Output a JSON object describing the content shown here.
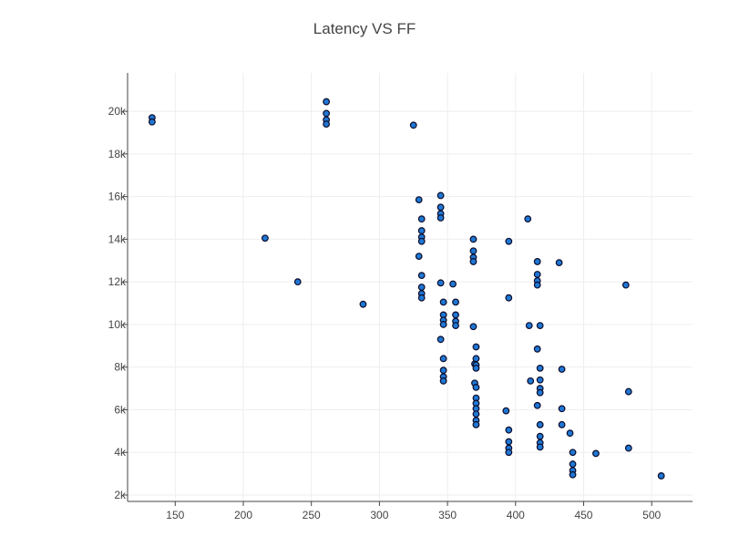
{
  "chart_data": {
    "type": "scatter",
    "title": "Latency VS FF",
    "xlabel": "",
    "ylabel": "",
    "xlim": [
      115,
      530
    ],
    "ylim": [
      1700,
      21800
    ],
    "grid": true,
    "x_ticks": [
      150,
      200,
      250,
      300,
      350,
      400,
      450,
      500
    ],
    "x_tick_labels": [
      "150",
      "200",
      "250",
      "300",
      "350",
      "400",
      "450",
      "500"
    ],
    "y_ticks": [
      2000,
      4000,
      6000,
      8000,
      10000,
      12000,
      14000,
      16000,
      18000,
      20000
    ],
    "y_tick_labels": [
      "2k",
      "4k",
      "6k",
      "8k",
      "10k",
      "12k",
      "14k",
      "16k",
      "18k",
      "20k"
    ],
    "marker_fill": "#1f77d4",
    "marker_stroke": "#0b0b2a",
    "series": [
      {
        "points": [
          [
            133,
            19700
          ],
          [
            133,
            19500
          ],
          [
            216,
            14050
          ],
          [
            240,
            12000
          ],
          [
            261,
            20450
          ],
          [
            261,
            19900
          ],
          [
            261,
            19600
          ],
          [
            261,
            19400
          ],
          [
            288,
            10950
          ],
          [
            325,
            19350
          ],
          [
            329,
            15850
          ],
          [
            329,
            13200
          ],
          [
            331,
            14950
          ],
          [
            331,
            14400
          ],
          [
            331,
            14100
          ],
          [
            331,
            13900
          ],
          [
            331,
            12300
          ],
          [
            331,
            11750
          ],
          [
            331,
            11450
          ],
          [
            331,
            11250
          ],
          [
            345,
            16050
          ],
          [
            345,
            15500
          ],
          [
            345,
            15200
          ],
          [
            345,
            15000
          ],
          [
            345,
            11950
          ],
          [
            345,
            9300
          ],
          [
            347,
            11050
          ],
          [
            347,
            10450
          ],
          [
            347,
            10200
          ],
          [
            347,
            10000
          ],
          [
            347,
            8400
          ],
          [
            347,
            7850
          ],
          [
            347,
            7550
          ],
          [
            347,
            7350
          ],
          [
            354,
            11900
          ],
          [
            356,
            11050
          ],
          [
            356,
            10450
          ],
          [
            356,
            10150
          ],
          [
            356,
            9950
          ],
          [
            369,
            14000
          ],
          [
            369,
            13450
          ],
          [
            369,
            13150
          ],
          [
            369,
            12950
          ],
          [
            369,
            9900
          ],
          [
            370,
            8150
          ],
          [
            370,
            7250
          ],
          [
            371,
            8950
          ],
          [
            371,
            8400
          ],
          [
            371,
            8100
          ],
          [
            371,
            7950
          ],
          [
            371,
            7050
          ],
          [
            371,
            6550
          ],
          [
            371,
            6300
          ],
          [
            371,
            6050
          ],
          [
            371,
            5800
          ],
          [
            371,
            5500
          ],
          [
            371,
            5300
          ],
          [
            393,
            5950
          ],
          [
            395,
            13900
          ],
          [
            395,
            11250
          ],
          [
            395,
            5050
          ],
          [
            395,
            4500
          ],
          [
            395,
            4200
          ],
          [
            395,
            4000
          ],
          [
            409,
            14950
          ],
          [
            410,
            9950
          ],
          [
            411,
            7350
          ],
          [
            416,
            12950
          ],
          [
            416,
            12350
          ],
          [
            416,
            12050
          ],
          [
            416,
            11850
          ],
          [
            416,
            8850
          ],
          [
            416,
            6200
          ],
          [
            418,
            9950
          ],
          [
            418,
            7950
          ],
          [
            418,
            7400
          ],
          [
            418,
            7000
          ],
          [
            418,
            6800
          ],
          [
            418,
            5300
          ],
          [
            418,
            4750
          ],
          [
            418,
            4450
          ],
          [
            418,
            4250
          ],
          [
            432,
            12900
          ],
          [
            434,
            7900
          ],
          [
            434,
            6050
          ],
          [
            434,
            5300
          ],
          [
            440,
            4900
          ],
          [
            442,
            4000
          ],
          [
            442,
            3450
          ],
          [
            442,
            3150
          ],
          [
            442,
            2950
          ],
          [
            459,
            3950
          ],
          [
            481,
            11850
          ],
          [
            483,
            6850
          ],
          [
            483,
            4200
          ],
          [
            507,
            2900
          ]
        ]
      }
    ]
  }
}
